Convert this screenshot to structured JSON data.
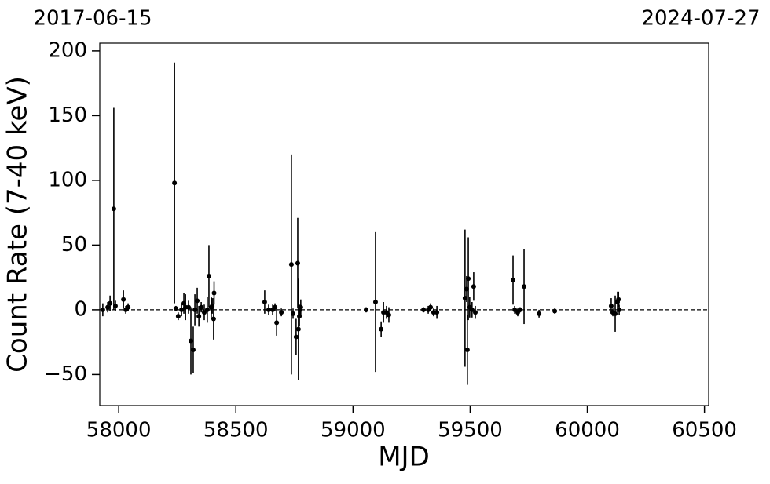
{
  "chart_data": {
    "type": "errorbar",
    "xlabel": "MJD",
    "ylabel": "Count Rate (7-40 keV)",
    "annotations": [
      "2017-06-15",
      "2024-07-27"
    ],
    "xlim": [
      57919,
      60518
    ],
    "ylim": [
      -74,
      206
    ],
    "xticks": [
      58000,
      58500,
      59000,
      59500,
      60000,
      60500
    ],
    "yticks": [
      {
        "value": -50,
        "label": "−50"
      },
      0,
      50,
      100,
      150,
      200
    ],
    "reference_line": 0,
    "color": "#000000",
    "x": [
      57932,
      57953,
      57963,
      57979,
      57986,
      58020,
      58030,
      58040,
      58238,
      58244,
      58254,
      58268,
      58278,
      58285,
      58298,
      58308,
      58318,
      58325,
      58335,
      58342,
      58352,
      58365,
      58378,
      58385,
      58395,
      58399,
      58405,
      58407,
      58623,
      58640,
      58657,
      58667,
      58674,
      58694,
      58737,
      58744,
      58757,
      58764,
      58767,
      58771,
      58774,
      58777,
      59056,
      59096,
      59120,
      59130,
      59143,
      59153,
      59301,
      59321,
      59331,
      59344,
      59358,
      59478,
      59485,
      59488,
      59492,
      59498,
      59508,
      59515,
      59522,
      59683,
      59690,
      59703,
      59713,
      59730,
      59794,
      59861,
      60102,
      60109,
      60119,
      60129,
      60133,
      60136
    ],
    "values": [
      0,
      2,
      5,
      78,
      3,
      8,
      0,
      2,
      98,
      1,
      -5,
      0,
      5,
      2,
      2,
      -24,
      -31,
      0,
      7,
      -5,
      2,
      -2,
      0,
      26,
      2,
      3,
      -7,
      13,
      6,
      0,
      0,
      2,
      -10,
      -2,
      35,
      -3,
      -21,
      36,
      -15,
      -5,
      0,
      2,
      0,
      6,
      -15,
      -2,
      -2,
      -4,
      0,
      0,
      2,
      -2,
      -2,
      9,
      16,
      -31,
      24,
      2,
      0,
      18,
      -2,
      23,
      0,
      -2,
      0,
      18,
      -3,
      -1,
      3,
      -2,
      -3,
      6,
      8,
      0
    ],
    "errors": [
      5,
      4,
      6,
      78,
      4,
      7,
      3,
      3,
      93,
      2,
      3,
      5,
      8,
      10,
      5,
      26,
      18,
      12,
      10,
      8,
      4,
      6,
      10,
      24,
      8,
      6,
      16,
      9,
      9,
      4,
      4,
      3,
      10,
      3,
      85,
      4,
      14,
      35,
      39,
      8,
      4,
      6,
      2,
      54,
      6,
      8,
      5,
      6,
      2,
      3,
      3,
      3,
      5,
      53,
      10,
      27,
      32,
      8,
      6,
      11,
      5,
      19,
      3,
      3,
      2,
      29,
      3,
      2,
      6,
      3,
      14,
      8,
      6,
      4
    ]
  }
}
